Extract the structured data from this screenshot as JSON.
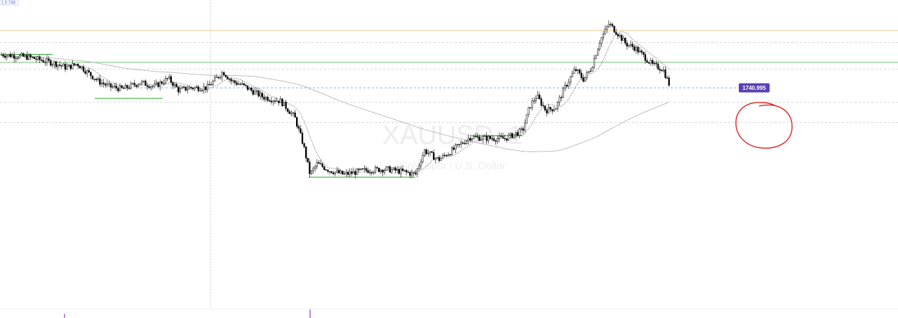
{
  "watermark": {
    "symbol": "XAUUSD, 1",
    "description": "Gold Spot / U.S. Dollar"
  },
  "price_label": {
    "value": "1740.995",
    "color": "#5b3fb5"
  },
  "corner_label": {
    "text": "1.0.748"
  },
  "colors": {
    "candle_up": "#ffffff",
    "candle_down": "#000000",
    "wick": "#222222",
    "ma_fast": "#555555",
    "ma_slow": "#b8b8b8",
    "support_line": "#45b045",
    "h_grid": "#c8c8c8",
    "orange_line": "#f5c58a",
    "blue_line": "#88b0d8",
    "annotation_circle": "#e02020",
    "cursor_line": "#cccccc",
    "bottom_marker": "#9a3cb8"
  },
  "chart_data": {
    "type": "candlestick",
    "symbol": "XAUUSD",
    "timeframe": "1",
    "title": "XAUUSD, 1",
    "subtitle": "Gold Spot / U.S. Dollar",
    "y_scale": {
      "low": 1726,
      "high": 1746,
      "note": "prices are estimated; no axis printed"
    },
    "current_price": 1740.995,
    "path_points": [
      [
        0,
        1743.5
      ],
      [
        40,
        1743.3
      ],
      [
        80,
        1742.8
      ],
      [
        95,
        1742.5
      ],
      [
        110,
        1742.8
      ],
      [
        140,
        1741.5
      ],
      [
        155,
        1741.1
      ],
      [
        175,
        1740.9
      ],
      [
        200,
        1741.4
      ],
      [
        220,
        1741.1
      ],
      [
        240,
        1741.7
      ],
      [
        255,
        1740.8
      ],
      [
        270,
        1741.0
      ],
      [
        295,
        1741.0
      ],
      [
        318,
        1742.2
      ],
      [
        330,
        1741.5
      ],
      [
        345,
        1741.2
      ],
      [
        375,
        1740.3
      ],
      [
        400,
        1740.0
      ],
      [
        420,
        1738.8
      ],
      [
        432,
        1736.8
      ],
      [
        442,
        1734.5
      ],
      [
        452,
        1735.3
      ],
      [
        470,
        1734.8
      ],
      [
        490,
        1734.5
      ],
      [
        520,
        1734.8
      ],
      [
        550,
        1734.9
      ],
      [
        575,
        1734.7
      ],
      [
        592,
        1734.5
      ],
      [
        605,
        1736.3
      ],
      [
        625,
        1735.6
      ],
      [
        650,
        1736.5
      ],
      [
        670,
        1737.3
      ],
      [
        700,
        1737.2
      ],
      [
        720,
        1737.2
      ],
      [
        745,
        1737.8
      ],
      [
        755,
        1739.6
      ],
      [
        765,
        1740.4
      ],
      [
        778,
        1739.3
      ],
      [
        792,
        1739.5
      ],
      [
        805,
        1741.0
      ],
      [
        820,
        1742.4
      ],
      [
        832,
        1741.6
      ],
      [
        843,
        1742.5
      ],
      [
        855,
        1744.5
      ],
      [
        868,
        1745.8
      ],
      [
        880,
        1745.1
      ],
      [
        892,
        1744.3
      ],
      [
        905,
        1744.0
      ],
      [
        915,
        1743.5
      ],
      [
        930,
        1742.7
      ],
      [
        945,
        1742.4
      ],
      [
        955,
        1741.1
      ]
    ],
    "support_levels": [
      {
        "x": [
          5,
          75
        ],
        "price": 1743.5
      },
      {
        "x": [
          135,
          232
        ],
        "price": 1740.2
      },
      {
        "x": [
          440,
          592
        ],
        "price": 1734.3
      },
      {
        "x": [
          670,
          745
        ],
        "price": 1737.4
      }
    ],
    "horizontal_levels": [
      {
        "price": 1745.3,
        "style": "solid",
        "color_key": "orange_line"
      },
      {
        "price": 1744.4,
        "style": "dashed",
        "color_key": "h_grid"
      },
      {
        "price": 1742.9,
        "style": "solid",
        "color_key": "support_line"
      },
      {
        "price": 1742.4,
        "style": "dashed",
        "color_key": "h_grid"
      },
      {
        "price": 1740.995,
        "style": "dashed",
        "color_key": "blue_line"
      },
      {
        "price": 1739.9,
        "style": "dashed",
        "color_key": "h_grid"
      },
      {
        "price": 1738.4,
        "style": "dashed",
        "color_key": "h_grid"
      }
    ]
  }
}
